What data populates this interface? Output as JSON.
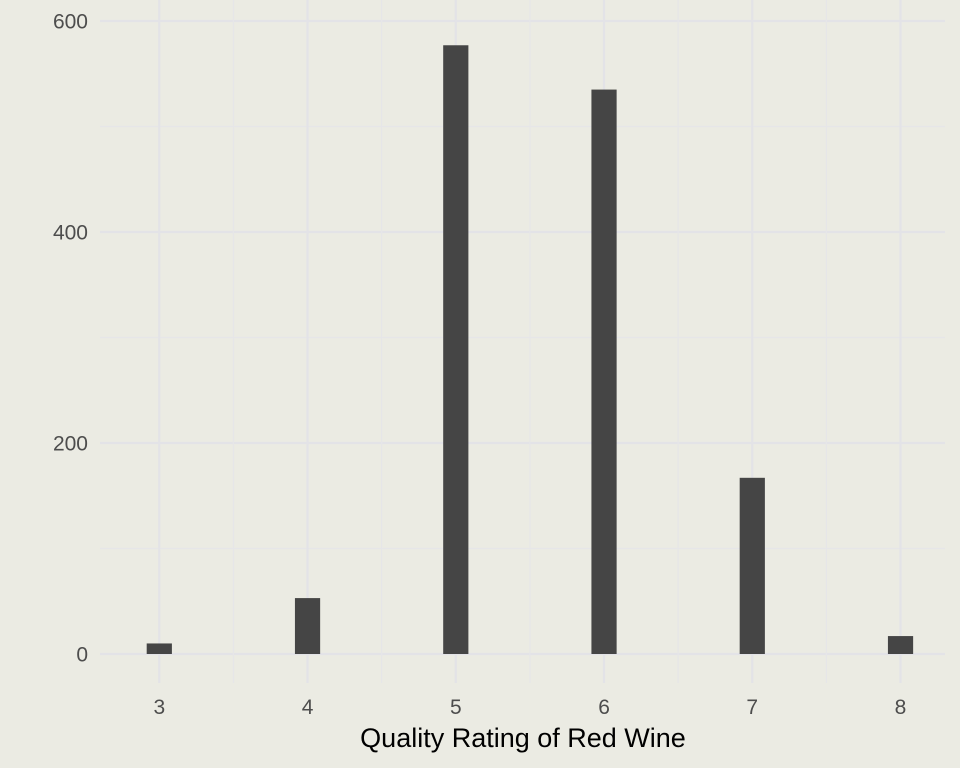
{
  "chart_data": {
    "type": "bar",
    "title": "",
    "xlabel": "Quality Rating of Red Wine",
    "ylabel": "",
    "categories": [
      "3",
      "4",
      "5",
      "6",
      "7",
      "8"
    ],
    "x": [
      3,
      4,
      5,
      6,
      7,
      8
    ],
    "values": [
      10,
      53,
      577,
      535,
      167,
      17
    ],
    "ylim": [
      0,
      600
    ],
    "yticks": [
      0,
      200,
      400,
      600
    ],
    "xlim": [
      2.6,
      8.3
    ],
    "grid": true,
    "legend": "none",
    "colors": {
      "background": "#ebebe3",
      "bar": "#454545",
      "grid": "#e3e3e7",
      "tick_text": "#4d4d4d",
      "axis_title": "#000000"
    }
  }
}
